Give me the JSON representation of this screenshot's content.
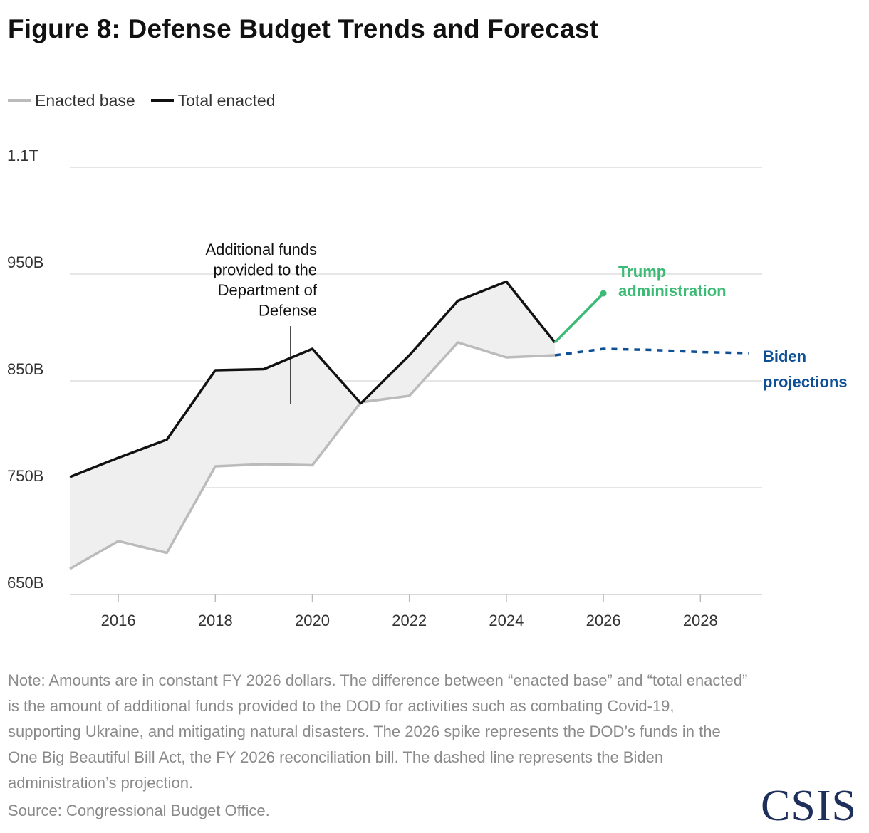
{
  "title": "Figure 8: Defense Budget Trends and Forecast",
  "legend": [
    {
      "label": "Enacted base",
      "color": "#bbbbbb"
    },
    {
      "label": "Total enacted",
      "color": "#111111"
    }
  ],
  "chart_data": {
    "type": "line",
    "x_ticks": [
      "2016",
      "2018",
      "2020",
      "2022",
      "2024",
      "2026",
      "2028"
    ],
    "y_ticks": [
      {
        "value": 650,
        "label": "650B"
      },
      {
        "value": 750,
        "label": "750B"
      },
      {
        "value": 850,
        "label": "850B"
      },
      {
        "value": 950,
        "label": "950B"
      },
      {
        "value": 1100,
        "label": "1.1T"
      }
    ],
    "xlim": [
      2014.55,
      2029.3
    ],
    "ylim": [
      650,
      1100
    ],
    "grid": true,
    "series": [
      {
        "name": "Enacted base",
        "color": "#bbbbbb",
        "x": [
          2015,
          2016,
          2017,
          2018,
          2019,
          2020,
          2021,
          2022,
          2023,
          2024,
          2025
        ],
        "y": [
          674,
          700,
          689,
          770,
          772,
          771,
          830,
          836,
          886,
          872,
          874
        ]
      },
      {
        "name": "Total enacted",
        "color": "#111111",
        "x": [
          2015,
          2016,
          2017,
          2018,
          2019,
          2020,
          2021,
          2022,
          2023,
          2024,
          2025
        ],
        "y": [
          760,
          778,
          795,
          860,
          861,
          880,
          829,
          874,
          925,
          943,
          886
        ]
      },
      {
        "color": "#3dba75",
        "x": [
          2025,
          2026
        ],
        "y": [
          886,
          932
        ]
      },
      {
        "color": "#0f4f96",
        "dashed": true,
        "x": [
          2025,
          2026,
          2027,
          2028,
          2029
        ],
        "y": [
          874,
          880,
          879,
          877,
          876
        ]
      }
    ],
    "annotations": {
      "additional_funds": [
        "Additional funds",
        "provided to the",
        "Department of",
        "Defense"
      ],
      "trump": [
        "Trump",
        "administration"
      ],
      "biden": [
        "Biden",
        "projections"
      ]
    }
  },
  "note": "Note: Amounts are in constant FY 2026 dollars. The difference between “enacted base” and “total enacted” is the amount of additional funds provided to the DOD for activities such as combating Covid-19, supporting Ukraine, and mitigating natural disasters. The 2026 spike represents the DOD’s funds in the One Big Beautiful Bill Act, the FY 2026 reconciliation bill. The dashed line represents the Biden administration’s projection.",
  "source": "Source: Congressional Budget Office.",
  "logo": "CSIS"
}
